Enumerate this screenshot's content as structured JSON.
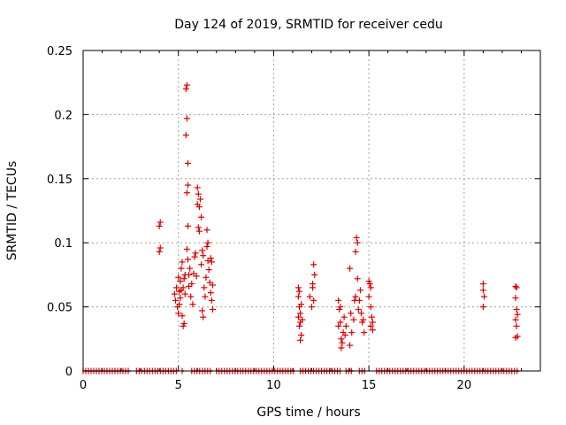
{
  "chart_data": {
    "type": "scatter",
    "title": "Day 124 of 2019, SRMTID for receiver cedu",
    "xlabel": "GPS time / hours",
    "ylabel": "SRMTID / TECUs",
    "xlim": [
      0,
      24
    ],
    "ylim": [
      0,
      0.25
    ],
    "xticks": [
      0,
      5,
      10,
      15,
      20
    ],
    "xtick_labels": [
      "0",
      "5",
      "10",
      "15",
      "20"
    ],
    "yticks": [
      0,
      0.05,
      0.1,
      0.15,
      0.2,
      0.25
    ],
    "ytick_labels": [
      "0",
      "0.05",
      "0.1",
      "0.15",
      "0.2",
      "0.25"
    ],
    "grid": true,
    "marker": "plus",
    "color": "#dd0000",
    "zero_baseline_segments": [
      [
        0.0,
        2.5
      ],
      [
        2.8,
        5.0
      ],
      [
        5.2,
        5.3
      ],
      [
        5.7,
        6.8
      ],
      [
        7.0,
        11.1
      ],
      [
        11.4,
        13.5
      ],
      [
        13.8,
        14.2
      ],
      [
        14.5,
        14.8
      ],
      [
        15.4,
        22.9
      ]
    ],
    "series": [
      {
        "name": "SRMTID",
        "points": [
          [
            4.0,
            0.093
          ],
          [
            4.05,
            0.096
          ],
          [
            4.0,
            0.113
          ],
          [
            4.05,
            0.116
          ],
          [
            4.8,
            0.06
          ],
          [
            4.85,
            0.055
          ],
          [
            4.9,
            0.065
          ],
          [
            4.95,
            0.05
          ],
          [
            5.0,
            0.073
          ],
          [
            5.0,
            0.045
          ],
          [
            5.05,
            0.062
          ],
          [
            5.05,
            0.052
          ],
          [
            5.1,
            0.07
          ],
          [
            5.1,
            0.057
          ],
          [
            5.15,
            0.08
          ],
          [
            5.15,
            0.063
          ],
          [
            5.2,
            0.085
          ],
          [
            5.2,
            0.043
          ],
          [
            5.25,
            0.035
          ],
          [
            5.3,
            0.037
          ],
          [
            5.25,
            0.065
          ],
          [
            5.3,
            0.072
          ],
          [
            5.35,
            0.075
          ],
          [
            5.35,
            0.06
          ],
          [
            5.4,
            0.22
          ],
          [
            5.45,
            0.223
          ],
          [
            5.45,
            0.197
          ],
          [
            5.4,
            0.184
          ],
          [
            5.5,
            0.162
          ],
          [
            5.5,
            0.145
          ],
          [
            5.45,
            0.139
          ],
          [
            5.5,
            0.113
          ],
          [
            5.45,
            0.095
          ],
          [
            5.5,
            0.087
          ],
          [
            5.55,
            0.075
          ],
          [
            5.55,
            0.066
          ],
          [
            5.6,
            0.08
          ],
          [
            5.65,
            0.058
          ],
          [
            5.7,
            0.068
          ],
          [
            5.75,
            0.052
          ],
          [
            5.8,
            0.076
          ],
          [
            5.85,
            0.089
          ],
          [
            5.9,
            0.092
          ],
          [
            5.95,
            0.074
          ],
          [
            6.0,
            0.143
          ],
          [
            6.05,
            0.138
          ],
          [
            6.0,
            0.13
          ],
          [
            6.1,
            0.128
          ],
          [
            6.15,
            0.134
          ],
          [
            6.05,
            0.112
          ],
          [
            6.1,
            0.109
          ],
          [
            6.2,
            0.12
          ],
          [
            6.25,
            0.094
          ],
          [
            6.3,
            0.09
          ],
          [
            6.2,
            0.083
          ],
          [
            6.25,
            0.047
          ],
          [
            6.3,
            0.042
          ],
          [
            6.35,
            0.065
          ],
          [
            6.4,
            0.058
          ],
          [
            6.45,
            0.073
          ],
          [
            6.5,
            0.11
          ],
          [
            6.55,
            0.1
          ],
          [
            6.5,
            0.097
          ],
          [
            6.55,
            0.086
          ],
          [
            6.6,
            0.079
          ],
          [
            6.65,
            0.069
          ],
          [
            6.7,
            0.088
          ],
          [
            6.75,
            0.085
          ],
          [
            6.7,
            0.061
          ],
          [
            6.75,
            0.055
          ],
          [
            6.8,
            0.067
          ],
          [
            6.8,
            0.048
          ],
          [
            11.3,
            0.065
          ],
          [
            11.35,
            0.062
          ],
          [
            11.3,
            0.058
          ],
          [
            11.35,
            0.05
          ],
          [
            11.4,
            0.045
          ],
          [
            11.3,
            0.042
          ],
          [
            11.4,
            0.038
          ],
          [
            11.35,
            0.035
          ],
          [
            11.45,
            0.028
          ],
          [
            11.4,
            0.024
          ],
          [
            11.5,
            0.04
          ],
          [
            11.45,
            0.052
          ],
          [
            11.9,
            0.058
          ],
          [
            12.0,
            0.05
          ],
          [
            12.05,
            0.068
          ],
          [
            12.1,
            0.083
          ],
          [
            12.05,
            0.065
          ],
          [
            12.15,
            0.075
          ],
          [
            12.1,
            0.055
          ],
          [
            13.4,
            0.055
          ],
          [
            13.45,
            0.048
          ],
          [
            13.5,
            0.05
          ],
          [
            13.4,
            0.035
          ],
          [
            13.5,
            0.038
          ],
          [
            13.55,
            0.025
          ],
          [
            13.6,
            0.022
          ],
          [
            13.55,
            0.018
          ],
          [
            13.65,
            0.03
          ],
          [
            13.7,
            0.042
          ],
          [
            13.75,
            0.028
          ],
          [
            13.8,
            0.035
          ],
          [
            14.0,
            0.08
          ],
          [
            14.05,
            0.045
          ],
          [
            14.1,
            0.03
          ],
          [
            14.0,
            0.02
          ],
          [
            14.2,
            0.04
          ],
          [
            14.25,
            0.055
          ],
          [
            14.3,
            0.058
          ],
          [
            14.35,
            0.104
          ],
          [
            14.4,
            0.1
          ],
          [
            14.3,
            0.093
          ],
          [
            14.4,
            0.072
          ],
          [
            14.45,
            0.048
          ],
          [
            14.5,
            0.055
          ],
          [
            14.55,
            0.063
          ],
          [
            14.6,
            0.045
          ],
          [
            14.65,
            0.038
          ],
          [
            14.7,
            0.04
          ],
          [
            14.75,
            0.03
          ],
          [
            15.0,
            0.07
          ],
          [
            15.05,
            0.068
          ],
          [
            15.1,
            0.065
          ],
          [
            15.0,
            0.058
          ],
          [
            15.1,
            0.05
          ],
          [
            15.15,
            0.042
          ],
          [
            15.2,
            0.038
          ],
          [
            15.1,
            0.035
          ],
          [
            15.2,
            0.032
          ],
          [
            21.0,
            0.068
          ],
          [
            21.0,
            0.063
          ],
          [
            21.05,
            0.058
          ],
          [
            21.0,
            0.05
          ],
          [
            22.7,
            0.066
          ],
          [
            22.75,
            0.065
          ],
          [
            22.7,
            0.057
          ],
          [
            22.75,
            0.048
          ],
          [
            22.8,
            0.044
          ],
          [
            22.7,
            0.04
          ],
          [
            22.75,
            0.035
          ],
          [
            22.8,
            0.027
          ],
          [
            22.7,
            0.026
          ]
        ]
      }
    ]
  }
}
